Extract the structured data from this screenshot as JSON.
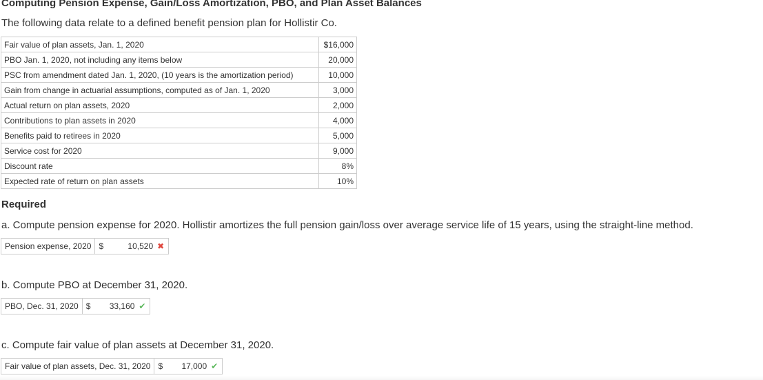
{
  "title": "Computing Pension Expense, Gain/Loss Amortization, PBO, and Plan Asset Balances",
  "intro": "The following data relate to a defined benefit pension plan for Hollistir Co.",
  "table": [
    {
      "label": "Fair value of plan assets, Jan. 1, 2020",
      "value": "$16,000"
    },
    {
      "label": "PBO Jan. 1, 2020, not including any items below",
      "value": "20,000"
    },
    {
      "label": "PSC from amendment dated Jan. 1, 2020, (10 years is the amortization period)",
      "value": "10,000"
    },
    {
      "label": "Gain from change in actuarial assumptions, computed as of Jan. 1, 2020",
      "value": "3,000"
    },
    {
      "label": "Actual return on plan assets, 2020",
      "value": "2,000"
    },
    {
      "label": "Contributions to plan assets in 2020",
      "value": "4,000"
    },
    {
      "label": "Benefits paid to retirees in 2020",
      "value": "5,000"
    },
    {
      "label": "Service cost for 2020",
      "value": "9,000"
    },
    {
      "label": "Discount rate",
      "value": "8%"
    },
    {
      "label": "Expected rate of return on plan assets",
      "value": "10%"
    }
  ],
  "required_label": "Required",
  "parts": {
    "a": {
      "question": "a. Compute pension expense for 2020. Hollistir amortizes the full pension gain/loss over average service life of 15 years, using the straight-line method.",
      "label": "Pension expense, 2020",
      "currency": "$",
      "value": "10,520",
      "status": "incorrect",
      "mark": "✖",
      "mark_color": "#e0483f"
    },
    "b": {
      "question": "b. Compute PBO at December 31, 2020.",
      "label": "PBO, Dec. 31, 2020",
      "currency": "$",
      "value": "33,160",
      "status": "correct",
      "mark": "✔",
      "mark_color": "#5cb85c"
    },
    "c": {
      "question": "c. Compute fair value of plan assets at December 31, 2020.",
      "label": "Fair value of plan assets, Dec. 31, 2020",
      "currency": "$",
      "value": "17,000",
      "status": "correct",
      "mark": "✔",
      "mark_color": "#5cb85c"
    }
  }
}
